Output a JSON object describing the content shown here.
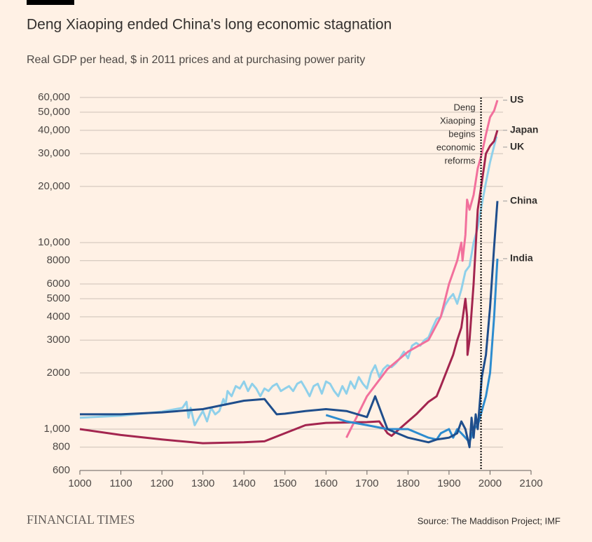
{
  "chart_data": {
    "type": "line",
    "title": "Deng Xiaoping ended China's long economic stagnation",
    "subtitle": "Real GDP per head, $ in 2011 prices and at purchasing power parity",
    "source": "Source: The Maddison Project; IMF",
    "brand": "FINANCIAL TIMES",
    "log_y": true,
    "grid": true,
    "xlim": [
      1000,
      2100
    ],
    "xticks": [
      1000,
      1100,
      1200,
      1300,
      1400,
      1500,
      1600,
      1700,
      1800,
      1900,
      2000,
      2100
    ],
    "ylim": [
      600,
      60000
    ],
    "yticks": [
      600,
      800,
      {
        "value": 1000,
        "label": "1,000"
      },
      2000,
      3000,
      4000,
      5000,
      6000,
      8000,
      {
        "value": 10000,
        "label": "10,000"
      },
      {
        "value": 20000,
        "label": "20,000"
      },
      {
        "value": 30000,
        "label": "30,000"
      },
      {
        "value": 40000,
        "label": "40,000"
      },
      {
        "value": 50000,
        "label": "50,000"
      },
      {
        "value": 60000,
        "label": "60,000"
      }
    ],
    "annotation": {
      "x": 1978,
      "lines": [
        "Deng",
        "Xiaoping",
        "begins",
        "economic",
        "reforms"
      ]
    },
    "series": [
      {
        "name": "UK",
        "color": "#8fd0ea",
        "x": [
          1000,
          1100,
          1200,
          1250,
          1260,
          1265,
          1270,
          1280,
          1290,
          1300,
          1310,
          1320,
          1330,
          1340,
          1350,
          1355,
          1360,
          1370,
          1380,
          1390,
          1400,
          1410,
          1420,
          1430,
          1440,
          1450,
          1460,
          1470,
          1480,
          1490,
          1500,
          1510,
          1520,
          1530,
          1540,
          1550,
          1560,
          1570,
          1580,
          1590,
          1600,
          1610,
          1620,
          1630,
          1640,
          1650,
          1660,
          1670,
          1680,
          1690,
          1700,
          1710,
          1720,
          1730,
          1740,
          1750,
          1760,
          1770,
          1780,
          1790,
          1800,
          1810,
          1820,
          1830,
          1840,
          1850,
          1860,
          1870,
          1880,
          1890,
          1900,
          1910,
          1920,
          1930,
          1940,
          1950,
          1960,
          1970,
          1980,
          1990,
          2000,
          2010,
          2016
        ],
        "values": [
          1150,
          1180,
          1240,
          1300,
          1400,
          1150,
          1300,
          1050,
          1150,
          1250,
          1100,
          1300,
          1200,
          1250,
          1450,
          1350,
          1600,
          1500,
          1700,
          1650,
          1800,
          1600,
          1750,
          1650,
          1500,
          1650,
          1600,
          1700,
          1750,
          1600,
          1650,
          1700,
          1600,
          1750,
          1800,
          1650,
          1500,
          1700,
          1750,
          1550,
          1800,
          1750,
          1600,
          1500,
          1700,
          1550,
          1800,
          1650,
          1900,
          1750,
          1650,
          2000,
          2200,
          1900,
          2100,
          2200,
          2150,
          2250,
          2400,
          2600,
          2400,
          2800,
          2900,
          2800,
          3000,
          3100,
          3500,
          3900,
          4000,
          4600,
          5000,
          5300,
          4700,
          5600,
          7000,
          7500,
          10000,
          12000,
          16000,
          21000,
          27000,
          33000,
          37000
        ]
      },
      {
        "name": "Japan",
        "color": "#a3254f",
        "x": [
          1000,
          1100,
          1200,
          1300,
          1400,
          1450,
          1500,
          1550,
          1600,
          1700,
          1730,
          1750,
          1760,
          1800,
          1820,
          1850,
          1870,
          1880,
          1900,
          1910,
          1920,
          1930,
          1940,
          1944,
          1945,
          1950,
          1960,
          1970,
          1980,
          1990,
          2000,
          2010,
          2018
        ],
        "values": [
          1000,
          930,
          880,
          840,
          850,
          860,
          950,
          1050,
          1080,
          1090,
          1100,
          950,
          920,
          1100,
          1200,
          1400,
          1500,
          1700,
          2200,
          2500,
          3000,
          3500,
          5000,
          4000,
          2500,
          3000,
          6000,
          15000,
          21000,
          30000,
          33000,
          35000,
          40000
        ]
      },
      {
        "name": "US",
        "color": "#f2709c",
        "x": [
          1650,
          1700,
          1750,
          1800,
          1850,
          1880,
          1900,
          1920,
          1930,
          1933,
          1940,
          1944,
          1950,
          1960,
          1970,
          1980,
          1990,
          2000,
          2010,
          2018
        ],
        "values": [
          900,
          1500,
          2100,
          2600,
          3000,
          4000,
          6000,
          8000,
          10000,
          8000,
          11000,
          17000,
          15000,
          18000,
          25000,
          30000,
          38000,
          47000,
          51000,
          58000
        ]
      },
      {
        "name": "India",
        "color": "#2d8ccf",
        "x": [
          1600,
          1650,
          1700,
          1750,
          1800,
          1850,
          1870,
          1880,
          1900,
          1910,
          1920,
          1930,
          1940,
          1950,
          1960,
          1970,
          1980,
          1990,
          2000,
          2010,
          2018
        ],
        "values": [
          1190,
          1100,
          1050,
          1000,
          1000,
          900,
          880,
          950,
          1000,
          900,
          1000,
          950,
          900,
          850,
          1000,
          1050,
          1250,
          1500,
          2000,
          4000,
          8200
        ]
      },
      {
        "name": "China",
        "color": "#1f4e8c",
        "x": [
          1000,
          1100,
          1200,
          1300,
          1400,
          1450,
          1480,
          1500,
          1550,
          1600,
          1650,
          1700,
          1720,
          1750,
          1800,
          1850,
          1870,
          1900,
          1920,
          1930,
          1940,
          1950,
          1955,
          1960,
          1965,
          1970,
          1980,
          1990,
          2000,
          2010,
          2018
        ],
        "values": [
          1200,
          1200,
          1230,
          1280,
          1420,
          1450,
          1200,
          1210,
          1250,
          1280,
          1250,
          1160,
          1500,
          1000,
          900,
          850,
          880,
          900,
          950,
          1100,
          1000,
          800,
          1150,
          900,
          1200,
          1000,
          1900,
          2500,
          4500,
          9500,
          16700
        ]
      }
    ]
  }
}
